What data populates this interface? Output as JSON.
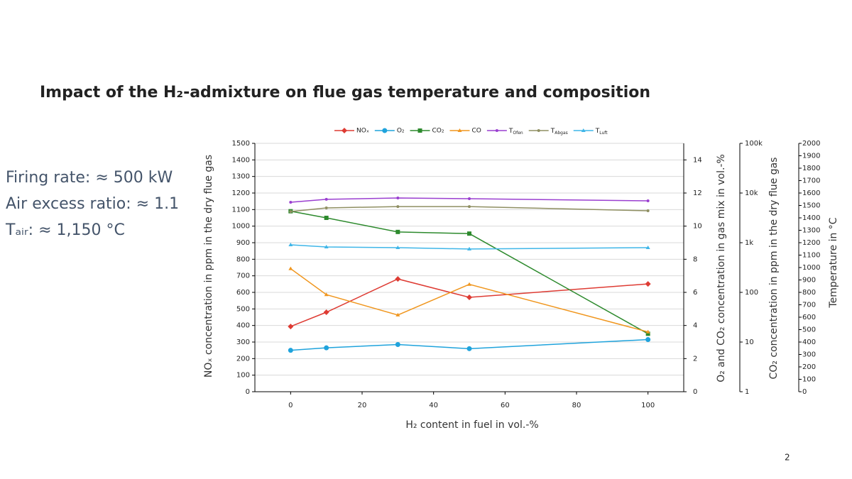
{
  "slide_title": "Impact of the H₂-admixture on flue gas temperature and composition",
  "notes": [
    "Firing rate: ≈ 500 kW",
    "Air excess ratio: ≈ 1.1",
    "Tₐᵢᵣ: ≈ 1,150 °C"
  ],
  "page_number": "2",
  "chart_data": {
    "type": "line",
    "x_label": "H₂ content in fuel in vol.-%",
    "y_label": "NOₓ concentration in ppm in the dry flue gas",
    "y2_label": "O₂ and CO₂ concentration in gas mix in vol.-%",
    "y3_label": "CO₂ concentration in ppm in the dry flue gas",
    "y4_label": "Temperature  in °C",
    "x": [
      0,
      10,
      30,
      50,
      100
    ],
    "xlim": [
      -10,
      110
    ],
    "xticks": [
      0,
      20,
      40,
      60,
      80,
      100
    ],
    "ylim": [
      0,
      1500
    ],
    "yticks": [
      0,
      100,
      200,
      300,
      400,
      500,
      600,
      700,
      800,
      900,
      1000,
      1100,
      1200,
      1300,
      1400,
      1500
    ],
    "y2lim": [
      0,
      15
    ],
    "y2ticks": [
      0,
      2,
      4,
      6,
      8,
      10,
      12,
      14
    ],
    "y3lim": [
      1,
      100000
    ],
    "y3log": true,
    "y3ticks": [
      1,
      10,
      100,
      {
        "value": 1000,
        "label": "1k"
      },
      {
        "value": 10000,
        "label": "10k"
      },
      {
        "value": 100000,
        "label": "100k"
      }
    ],
    "y4lim": [
      0,
      2000
    ],
    "y4ticks": [
      0,
      100,
      200,
      300,
      400,
      500,
      600,
      700,
      800,
      900,
      1000,
      1100,
      1200,
      1300,
      1400,
      1500,
      1600,
      1700,
      1800,
      1900,
      2000
    ],
    "grid": true,
    "legend": "top",
    "series": [
      {
        "name": "NOₓ",
        "color": "#de3b33",
        "marker": "diamond",
        "axis": "y",
        "values": [
          394,
          480,
          681,
          570,
          651
        ]
      },
      {
        "name": "O₂",
        "color": "#1fa3dc",
        "marker": "circle",
        "axis": "y2",
        "values": [
          2.5,
          2.65,
          2.85,
          2.6,
          3.15
        ]
      },
      {
        "name": "CO₂",
        "color": "#2d8a2d",
        "marker": "square",
        "axis": "y2",
        "values": [
          10.9,
          10.5,
          9.65,
          9.55,
          3.5
        ]
      },
      {
        "name": "CO",
        "color": "#f0961e",
        "marker": "triangle",
        "axis": "y3",
        "values": [
          300,
          90,
          35,
          145,
          16
        ]
      },
      {
        "name": "TOfen",
        "color": "#9a3fd0",
        "marker": "small",
        "axis": "y4",
        "values": [
          1526,
          1549,
          1560,
          1554,
          1537
        ]
      },
      {
        "name": "TAbgas",
        "color": "#8f8f62",
        "marker": "small",
        "axis": "y4",
        "values": [
          1451,
          1480,
          1491,
          1491,
          1457
        ]
      },
      {
        "name": "TLuft",
        "color": "#3fb6e8",
        "marker": "triangle",
        "axis": "y4",
        "values": [
          1183,
          1166,
          1160,
          1149,
          1160
        ]
      }
    ]
  }
}
